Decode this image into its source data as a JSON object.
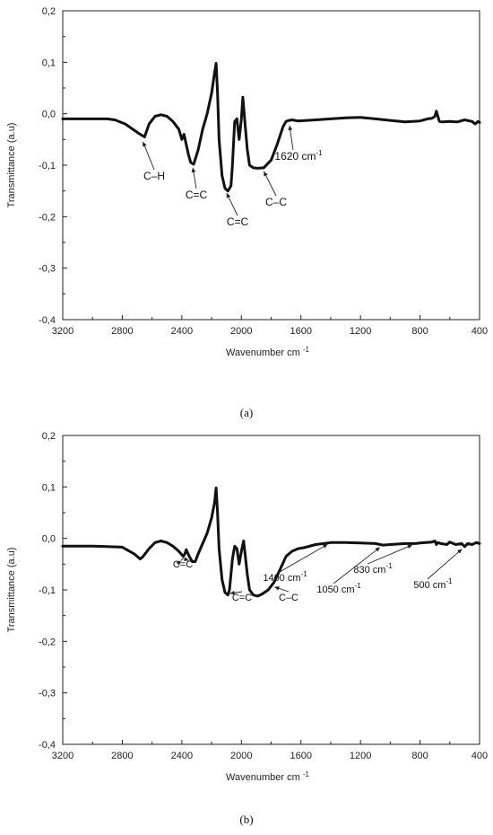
{
  "chart_data": [
    {
      "type": "line",
      "panel_label": "(a)",
      "xlabel": "Wavenumber cm",
      "xlabel_sup": "-1",
      "ylabel": "Transmittance (a.u)",
      "xlim": [
        3200,
        400
      ],
      "ylim": [
        -0.4,
        0.2
      ],
      "x_ticks": [
        "3200",
        "2800",
        "2400",
        "2000",
        "1600",
        "1200",
        "800",
        "400"
      ],
      "y_ticks": [
        "0,2",
        "0,1",
        "0,0",
        "-0,1",
        "-0,2",
        "-0,3",
        "-0,4"
      ],
      "series": [
        {
          "x": [
            3200,
            3000,
            2900,
            2850,
            2780,
            2720,
            2680,
            2650,
            2620,
            2580,
            2540,
            2500,
            2460,
            2420,
            2400,
            2385,
            2370,
            2355,
            2340,
            2320,
            2290,
            2260,
            2230,
            2200,
            2180,
            2170,
            2160,
            2150,
            2130,
            2110,
            2090,
            2070,
            2060,
            2045,
            2030,
            2015,
            2000,
            1990,
            1975,
            1960,
            1945,
            1920,
            1890,
            1850,
            1800,
            1760,
            1720,
            1700,
            1680,
            1660,
            1640,
            1620,
            1500,
            1400,
            1300,
            1200,
            1100,
            1000,
            900,
            800,
            750,
            720,
            700,
            690,
            680,
            670,
            650,
            600,
            550,
            500,
            450,
            430,
            410,
            400
          ],
          "y": [
            -0.01,
            -0.01,
            -0.01,
            -0.012,
            -0.02,
            -0.032,
            -0.04,
            -0.045,
            -0.02,
            -0.005,
            -0.002,
            -0.005,
            -0.015,
            -0.03,
            -0.05,
            -0.04,
            -0.06,
            -0.08,
            -0.095,
            -0.098,
            -0.07,
            -0.03,
            0.0,
            0.04,
            0.08,
            0.098,
            0.04,
            -0.05,
            -0.12,
            -0.145,
            -0.15,
            -0.14,
            -0.1,
            -0.015,
            -0.01,
            -0.05,
            -0.01,
            0.032,
            -0.02,
            -0.07,
            -0.1,
            -0.105,
            -0.106,
            -0.105,
            -0.09,
            -0.06,
            -0.025,
            -0.015,
            -0.013,
            -0.012,
            -0.013,
            -0.014,
            -0.012,
            -0.01,
            -0.008,
            -0.007,
            -0.01,
            -0.013,
            -0.016,
            -0.014,
            -0.01,
            -0.009,
            -0.005,
            0.005,
            -0.005,
            -0.015,
            -0.016,
            -0.015,
            -0.016,
            -0.012,
            -0.015,
            -0.02,
            -0.015,
            -0.017
          ]
        }
      ],
      "annotations": [
        {
          "text": "C–H",
          "sup": "",
          "x": 2670,
          "y": -0.048
        },
        {
          "text": "C=C",
          "sup": "",
          "x": 2330,
          "y": -0.098
        },
        {
          "text": "C=C",
          "sup": "",
          "x": 2110,
          "y": -0.148
        },
        {
          "text": "C–C",
          "sup": "",
          "x": 1860,
          "y": -0.106
        },
        {
          "text": "1620 cm",
          "sup": "-1",
          "x": 1680,
          "y": -0.016
        }
      ]
    },
    {
      "type": "line",
      "panel_label": "(b)",
      "xlabel": "Wavenumber cm",
      "xlabel_sup": "-1",
      "ylabel": "Transmittance (a.u)",
      "xlim": [
        3200,
        400
      ],
      "ylim": [
        -0.4,
        0.2
      ],
      "x_ticks": [
        "3200",
        "2800",
        "2400",
        "2000",
        "1600",
        "1200",
        "800",
        "400"
      ],
      "y_ticks": [
        "0,2",
        "0,1",
        "0,0",
        "-0,1",
        "-0,2",
        "-0,3",
        "-0,4"
      ],
      "series": [
        {
          "x": [
            3200,
            3000,
            2900,
            2800,
            2720,
            2680,
            2660,
            2620,
            2580,
            2540,
            2500,
            2460,
            2420,
            2390,
            2380,
            2370,
            2350,
            2330,
            2310,
            2290,
            2260,
            2230,
            2200,
            2180,
            2170,
            2160,
            2150,
            2130,
            2110,
            2090,
            2080,
            2060,
            2045,
            2030,
            2015,
            2000,
            1985,
            1975,
            1960,
            1945,
            1920,
            1890,
            1860,
            1820,
            1780,
            1740,
            1700,
            1660,
            1620,
            1580,
            1500,
            1400,
            1300,
            1200,
            1100,
            1050,
            1000,
            900,
            830,
            800,
            720,
            700,
            690,
            680,
            660,
            620,
            600,
            560,
            520,
            500,
            480,
            450,
            420,
            400
          ],
          "y": [
            -0.015,
            -0.015,
            -0.016,
            -0.017,
            -0.03,
            -0.04,
            -0.035,
            -0.02,
            -0.008,
            -0.005,
            -0.008,
            -0.015,
            -0.025,
            -0.035,
            -0.03,
            -0.022,
            -0.035,
            -0.045,
            -0.045,
            -0.03,
            -0.01,
            0.01,
            0.04,
            0.07,
            0.098,
            0.05,
            -0.02,
            -0.08,
            -0.105,
            -0.11,
            -0.1,
            -0.04,
            -0.015,
            -0.02,
            -0.05,
            -0.025,
            -0.005,
            -0.03,
            -0.07,
            -0.1,
            -0.11,
            -0.112,
            -0.108,
            -0.1,
            -0.085,
            -0.06,
            -0.035,
            -0.025,
            -0.02,
            -0.018,
            -0.012,
            -0.008,
            -0.008,
            -0.009,
            -0.01,
            -0.013,
            -0.012,
            -0.01,
            -0.01,
            -0.009,
            -0.007,
            -0.005,
            -0.012,
            -0.008,
            -0.01,
            -0.012,
            -0.007,
            -0.012,
            -0.01,
            -0.016,
            -0.01,
            -0.012,
            -0.008,
            -0.01
          ]
        }
      ],
      "annotations": [
        {
          "text": "C=C",
          "sup": "",
          "x": 2390,
          "y": -0.038
        },
        {
          "text": "C=C",
          "sup": "",
          "x": 2330,
          "y": -0.045
        },
        {
          "text": "C=C",
          "sup": "",
          "x": 2100,
          "y": -0.108
        },
        {
          "text": "C–C",
          "sup": "",
          "x": 1800,
          "y": -0.092
        },
        {
          "text": "1400 cm",
          "sup": "-1",
          "x": 1400,
          "y": -0.008
        },
        {
          "text": "1050 cm",
          "sup": "-1",
          "x": 1050,
          "y": -0.013
        },
        {
          "text": "830 cm",
          "sup": "-1",
          "x": 830,
          "y": -0.01
        },
        {
          "text": "500 cm",
          "sup": "-1",
          "x": 500,
          "y": -0.016
        }
      ]
    }
  ]
}
